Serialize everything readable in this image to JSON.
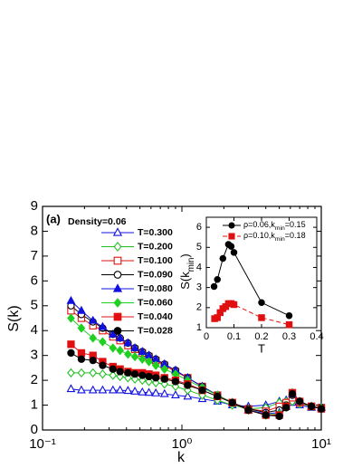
{
  "chart_data": [
    {
      "type": "line",
      "xlabel": "k",
      "ylabel": "S(k)",
      "annotations": [
        "(a)",
        "Density=0.06"
      ],
      "xscale": "log",
      "xlim": [
        0.1,
        10
      ],
      "xticks": [
        {
          "value": 0.1,
          "label": "10⁻¹"
        },
        {
          "value": 1,
          "label": "10⁰"
        },
        {
          "value": 10,
          "label": "10¹"
        }
      ],
      "ylim": [
        0,
        9
      ],
      "yticks": [
        0,
        1,
        2,
        3,
        4,
        5,
        6,
        7,
        8,
        9
      ],
      "x": [
        0.16,
        0.19,
        0.23,
        0.27,
        0.32,
        0.36,
        0.41,
        0.46,
        0.52,
        0.58,
        0.65,
        0.75,
        0.9,
        1.1,
        1.4,
        1.8,
        2.3,
        3,
        4,
        5,
        5.6,
        6.2,
        7,
        8.5,
        10
      ],
      "series": [
        {
          "name": "T=0.300",
          "color": "#1010e0",
          "marker": "triangle",
          "filled": false,
          "values": [
            1.65,
            1.6,
            1.6,
            1.6,
            1.6,
            1.6,
            1.58,
            1.55,
            1.52,
            1.5,
            1.48,
            1.45,
            1.4,
            1.35,
            1.25,
            1.15,
            1.0,
            0.95,
            1.0,
            1.15,
            1.2,
            1.1,
            1.0,
            0.9,
            0.9
          ]
        },
        {
          "name": "T=0.200",
          "color": "#20c020",
          "marker": "diamond",
          "filled": false,
          "values": [
            2.3,
            2.3,
            2.3,
            2.25,
            2.2,
            2.15,
            2.1,
            2.05,
            2.0,
            1.95,
            1.9,
            1.85,
            1.75,
            1.6,
            1.4,
            1.2,
            1.0,
            0.85,
            0.9,
            1.1,
            1.15,
            1.15,
            1.05,
            0.95,
            0.9
          ]
        },
        {
          "name": "T=0.100",
          "color": "#e01010",
          "marker": "square",
          "filled": false,
          "values": [
            4.8,
            4.5,
            4.2,
            4.0,
            3.75,
            3.6,
            3.4,
            3.25,
            3.1,
            2.95,
            2.8,
            2.6,
            2.35,
            2.1,
            1.75,
            1.4,
            1.1,
            0.85,
            0.75,
            0.95,
            1.1,
            1.3,
            1.1,
            0.95,
            0.9
          ]
        },
        {
          "name": "T=0.090",
          "color": "#000000",
          "marker": "circle",
          "filled": false,
          "values": [
            5.0,
            4.65,
            4.35,
            4.1,
            3.85,
            3.7,
            3.5,
            3.3,
            3.15,
            3.0,
            2.85,
            2.65,
            2.4,
            2.1,
            1.75,
            1.4,
            1.1,
            0.85,
            0.7,
            0.8,
            1.0,
            1.4,
            1.15,
            0.95,
            0.9
          ]
        },
        {
          "name": "T=0.080",
          "color": "#1010e0",
          "marker": "triangle",
          "filled": true,
          "values": [
            5.2,
            4.8,
            4.4,
            4.15,
            3.85,
            3.7,
            3.5,
            3.3,
            3.15,
            3.0,
            2.85,
            2.65,
            2.4,
            2.1,
            1.75,
            1.4,
            1.1,
            0.8,
            0.65,
            0.7,
            0.95,
            1.45,
            1.15,
            0.95,
            0.9
          ]
        },
        {
          "name": "T=0.060",
          "color": "#20d020",
          "marker": "diamond",
          "filled": true,
          "values": [
            4.5,
            4.1,
            3.7,
            3.55,
            3.3,
            3.2,
            3.05,
            2.95,
            2.85,
            2.75,
            2.6,
            2.45,
            2.25,
            2.0,
            1.7,
            1.4,
            1.1,
            0.8,
            0.6,
            0.65,
            0.95,
            1.5,
            1.15,
            0.95,
            0.88
          ]
        },
        {
          "name": "T=0.040",
          "color": "#e01010",
          "marker": "square",
          "filled": true,
          "values": [
            3.45,
            3.1,
            3.0,
            2.75,
            2.55,
            2.45,
            2.35,
            2.3,
            2.3,
            2.25,
            2.2,
            2.1,
            2.0,
            1.85,
            1.6,
            1.35,
            1.1,
            0.8,
            0.6,
            0.6,
            0.95,
            1.5,
            1.15,
            0.95,
            0.85
          ]
        },
        {
          "name": "T=0.028",
          "color": "#000000",
          "marker": "circle",
          "filled": true,
          "values": [
            3.1,
            2.85,
            2.8,
            2.6,
            2.45,
            2.35,
            2.3,
            2.25,
            2.2,
            2.15,
            2.1,
            2.05,
            1.95,
            1.8,
            1.6,
            1.35,
            1.1,
            0.8,
            0.6,
            0.55,
            0.9,
            1.45,
            1.15,
            0.95,
            0.85
          ]
        }
      ]
    },
    {
      "type": "line",
      "xlabel": "T",
      "ylabel": [
        "S(k",
        "min",
        ")"
      ],
      "xlim": [
        0,
        0.4
      ],
      "xticks": [
        0,
        0.1,
        0.2,
        0.3,
        0.4
      ],
      "ylim": [
        1,
        6.5
      ],
      "yticks": [
        1,
        2,
        3,
        4,
        5,
        6
      ],
      "series": [
        {
          "name": [
            "ρ=0.06,k",
            "min",
            "=0.15"
          ],
          "color": "#000000",
          "marker": "circle",
          "filled": true,
          "dashed": false,
          "x": [
            0.028,
            0.04,
            0.06,
            0.08,
            0.09,
            0.1,
            0.2,
            0.3
          ],
          "values": [
            3.05,
            3.4,
            4.45,
            5.15,
            5.05,
            4.75,
            2.25,
            1.6
          ]
        },
        {
          "name": [
            "ρ=0.10,k",
            "min",
            "=0.18"
          ],
          "color": "#e01010",
          "marker": "square",
          "filled": true,
          "dashed": true,
          "x": [
            0.03,
            0.04,
            0.05,
            0.06,
            0.07,
            0.08,
            0.09,
            0.1,
            0.2,
            0.3
          ],
          "values": [
            1.45,
            1.5,
            1.75,
            1.95,
            2.05,
            2.2,
            2.2,
            2.15,
            1.5,
            1.15
          ]
        }
      ]
    }
  ]
}
